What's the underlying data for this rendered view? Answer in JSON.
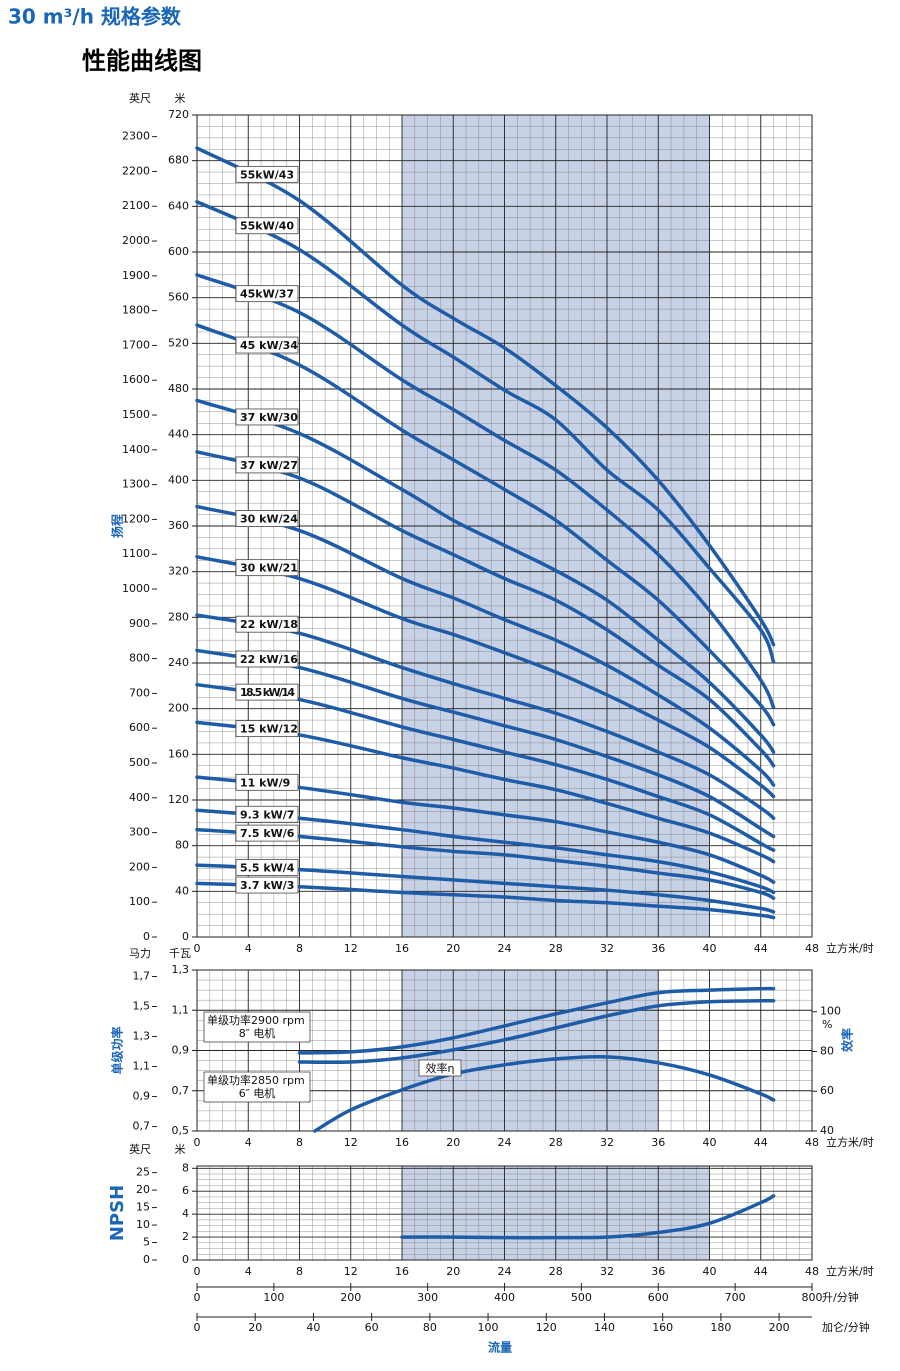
{
  "header": {
    "title": "30 m³/h 规格参数",
    "subtitle": "性能曲线图"
  },
  "chart_data": [
    {
      "type": "line",
      "y_label": "扬程",
      "y_unit": "米",
      "x_unit": "立方米/时",
      "xlim": [
        0,
        48
      ],
      "xticks": [
        0,
        4,
        8,
        12,
        16,
        20,
        24,
        28,
        32,
        36,
        40,
        44,
        48
      ],
      "ylim": [
        0,
        720
      ],
      "yticks": [
        0,
        40,
        80,
        120,
        160,
        200,
        240,
        280,
        320,
        360,
        400,
        440,
        480,
        520,
        560,
        600,
        640,
        680,
        720
      ],
      "outer": {
        "unit": "英尺",
        "lim": [
          0,
          2362.2
        ],
        "ticks": [
          0,
          100,
          200,
          300,
          400,
          500,
          600,
          700,
          800,
          900,
          1000,
          1100,
          1200,
          1300,
          1400,
          1500,
          1600,
          1700,
          1800,
          1900,
          2000,
          2100,
          2200,
          2300
        ]
      },
      "grid": true,
      "minor_grid": true,
      "shaded": [
        16,
        40
      ],
      "x": [
        0,
        8,
        16,
        20,
        24,
        28,
        32,
        36,
        40,
        44,
        45
      ],
      "series": [
        {
          "name": "55kW/43",
          "color": "#1f5ca8",
          "values": [
            691,
            645,
            571,
            542,
            516,
            483,
            446,
            400,
            343,
            278,
            256
          ]
        },
        {
          "name": "55kW/40",
          "color": "#1f5ca8",
          "values": [
            644,
            602,
            536,
            508,
            479,
            453,
            409,
            374,
            323,
            269,
            241
          ]
        },
        {
          "name": "45kW/37",
          "color": "#1f5ca8",
          "values": [
            580,
            547,
            488,
            462,
            435,
            409,
            374,
            335,
            286,
            225,
            201
          ]
        },
        {
          "name": "45 kW/34",
          "color": "#1f5ca8",
          "values": [
            536,
            501,
            444,
            418,
            392,
            365,
            330,
            295,
            251,
            203,
            186
          ]
        },
        {
          "name": "37 kW/30",
          "color": "#1f5ca8",
          "values": [
            470,
            441,
            392,
            365,
            343,
            321,
            295,
            260,
            223,
            177,
            162
          ]
        },
        {
          "name": "37 kW/27",
          "color": "#1f5ca8",
          "values": [
            425,
            402,
            356,
            335,
            314,
            295,
            269,
            238,
            208,
            164,
            150
          ]
        },
        {
          "name": "30 kW/24",
          "color": "#1f5ca8",
          "values": [
            377,
            356,
            314,
            297,
            278,
            260,
            238,
            212,
            183,
            146,
            133
          ]
        },
        {
          "name": "30 kW/21",
          "color": "#1f5ca8",
          "values": [
            333,
            314,
            279,
            265,
            249,
            232,
            212,
            190,
            166,
            133,
            123
          ]
        },
        {
          "name": "22 kW/18",
          "color": "#1f5ca8",
          "values": [
            282,
            266,
            236,
            222,
            209,
            196,
            180,
            162,
            142,
            113,
            104
          ]
        },
        {
          "name": "22 kW/16",
          "color": "#1f5ca8",
          "values": [
            251,
            236,
            209,
            197,
            185,
            173,
            158,
            142,
            123,
            95,
            88
          ]
        },
        {
          "name": "18.5 kW/14",
          "color": "#1f5ca8",
          "values": [
            221,
            208,
            184,
            173,
            162,
            151,
            138,
            123,
            107,
            82,
            76
          ]
        },
        {
          "name": "15 kW/12",
          "color": "#1f5ca8",
          "values": [
            188,
            177,
            157,
            148,
            138,
            129,
            117,
            104,
            91,
            72,
            66
          ]
        },
        {
          "name": "11 kW/9",
          "color": "#1f5ca8",
          "values": [
            140,
            131,
            118,
            113,
            107,
            101,
            92,
            83,
            72,
            54,
            48
          ]
        },
        {
          "name": "9.3 kW/7",
          "color": "#1f5ca8",
          "values": [
            111,
            104,
            94,
            88,
            83,
            78,
            72,
            66,
            57,
            44,
            39
          ]
        },
        {
          "name": "7.5 kW/6",
          "color": "#1f5ca8",
          "values": [
            94,
            88,
            79,
            75,
            72,
            67,
            62,
            56,
            50,
            39,
            34
          ]
        },
        {
          "name": "5.5 kW/4",
          "color": "#1f5ca8",
          "values": [
            63,
            59,
            53,
            50,
            47,
            44,
            41,
            37,
            32,
            25,
            22
          ]
        },
        {
          "name": "3.7 kW/3",
          "color": "#1f5ca8",
          "values": [
            47,
            44,
            39,
            37,
            35,
            32,
            30,
            27,
            24,
            19,
            17
          ]
        }
      ]
    },
    {
      "type": "line",
      "y_label": "单级功率",
      "y_unit": "千瓦",
      "x_unit": "立方米/时",
      "xlim": [
        0,
        48
      ],
      "xticks": [
        0,
        4,
        8,
        12,
        16,
        20,
        24,
        28,
        32,
        36,
        40,
        44,
        48
      ],
      "ylim": [
        0.5,
        1.3
      ],
      "yticks": [
        {
          "value": 0.5,
          "label": "0,5"
        },
        {
          "value": 0.7,
          "label": "0,7"
        },
        {
          "value": 0.9,
          "label": "0,9"
        },
        {
          "value": 1.1,
          "label": "1,1"
        },
        {
          "value": 1.3,
          "label": "1,3"
        }
      ],
      "outer": {
        "unit": "马力",
        "lim": [
          0.6705,
          1.7433
        ],
        "ticks": [
          {
            "value": 0.7,
            "label": "0,7"
          },
          {
            "value": 0.9,
            "label": "0,9"
          },
          {
            "value": 1.1,
            "label": "1,1"
          },
          {
            "value": 1.3,
            "label": "1,3"
          },
          {
            "value": 1.5,
            "label": "1,5"
          },
          {
            "value": 1.7,
            "label": "1,7"
          }
        ]
      },
      "y2lim": [
        40,
        121
      ],
      "y2ticks": [
        40,
        60,
        80,
        100
      ],
      "y2_unit": "%",
      "y2_label": "效率",
      "grid": true,
      "minor_grid": true,
      "shaded": [
        16,
        36
      ],
      "series": [
        {
          "name": "单级功率2900 rpm",
          "motor": "8″ 电机",
          "color": "#1f5ca8",
          "x": [
            8,
            12,
            16,
            20,
            24,
            28,
            32,
            36,
            40,
            44,
            45
          ],
          "values": [
            0.888,
            0.893,
            0.918,
            0.963,
            1.022,
            1.082,
            1.137,
            1.187,
            1.2,
            1.207,
            1.207
          ]
        },
        {
          "name": "单级功率2850 rpm",
          "motor": "6″ 电机",
          "color": "#1f5ca8",
          "x": [
            8,
            12,
            16,
            20,
            24,
            28,
            32,
            36,
            40,
            44,
            45
          ],
          "values": [
            0.843,
            0.843,
            0.863,
            0.903,
            0.953,
            1.012,
            1.072,
            1.122,
            1.142,
            1.147,
            1.147
          ]
        },
        {
          "name": "效率η",
          "axis": "y2",
          "color": "#1f5ca8",
          "x": [
            9.2,
            12,
            16,
            20,
            24,
            28,
            32,
            36,
            40,
            44,
            45
          ],
          "values": [
            40,
            50.6,
            60.7,
            68.7,
            73.3,
            76.3,
            77.3,
            74.3,
            68.2,
            58.7,
            55.6
          ]
        }
      ]
    },
    {
      "type": "line",
      "y_label": "NPSH",
      "y_unit": "米",
      "x_unit": "立方米/时",
      "xlim": [
        0,
        48
      ],
      "xticks": [
        0,
        4,
        8,
        12,
        16,
        20,
        24,
        28,
        32,
        36,
        40,
        44,
        48
      ],
      "ylim": [
        0,
        8.2
      ],
      "yticks": [
        0,
        2,
        4,
        6,
        8
      ],
      "outer": {
        "unit": "英尺",
        "lim": [
          0,
          26.9
        ],
        "ticks": [
          0,
          5,
          10,
          15,
          20,
          25
        ]
      },
      "grid": true,
      "minor_grid": true,
      "shaded": [
        16,
        40
      ],
      "series": [
        {
          "color": "#1f5ca8",
          "x": [
            16,
            20,
            24,
            28,
            32,
            36,
            40,
            44,
            45
          ],
          "values": [
            2,
            2,
            1.95,
            1.95,
            2,
            2.4,
            3.2,
            5,
            5.6
          ]
        }
      ]
    }
  ],
  "flow_axes": [
    {
      "unit": "升/分钟",
      "lim": [
        0,
        800
      ],
      "ticks": [
        0,
        100,
        200,
        300,
        400,
        500,
        600,
        700,
        800
      ]
    },
    {
      "unit": "加仑/分钟",
      "lim": [
        0,
        211.3
      ],
      "ticks": [
        0,
        20,
        40,
        60,
        80,
        100,
        120,
        140,
        160,
        180,
        200
      ]
    }
  ],
  "flow_label": "流量"
}
